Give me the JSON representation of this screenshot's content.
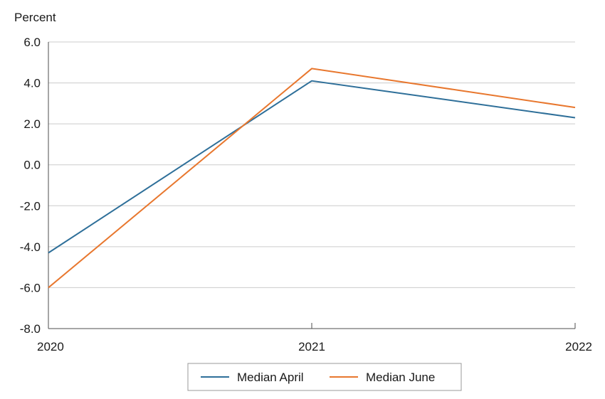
{
  "chart_data": {
    "type": "line",
    "ylabel": "Percent",
    "xlabel": "",
    "x": [
      "2020",
      "2021",
      "2022"
    ],
    "ylim": [
      -8.0,
      6.0
    ],
    "yticks": [
      "6.0",
      "4.0",
      "2.0",
      "0.0",
      "-2.0",
      "-4.0",
      "-6.0",
      "-8.0"
    ],
    "grid": true,
    "legend_position": "bottom-center",
    "series": [
      {
        "name": "Median April",
        "color": "#2e6f99",
        "values": [
          -4.3,
          4.1,
          2.3
        ]
      },
      {
        "name": "Median June",
        "color": "#e8772e",
        "values": [
          -6.0,
          4.7,
          2.8
        ]
      }
    ]
  }
}
